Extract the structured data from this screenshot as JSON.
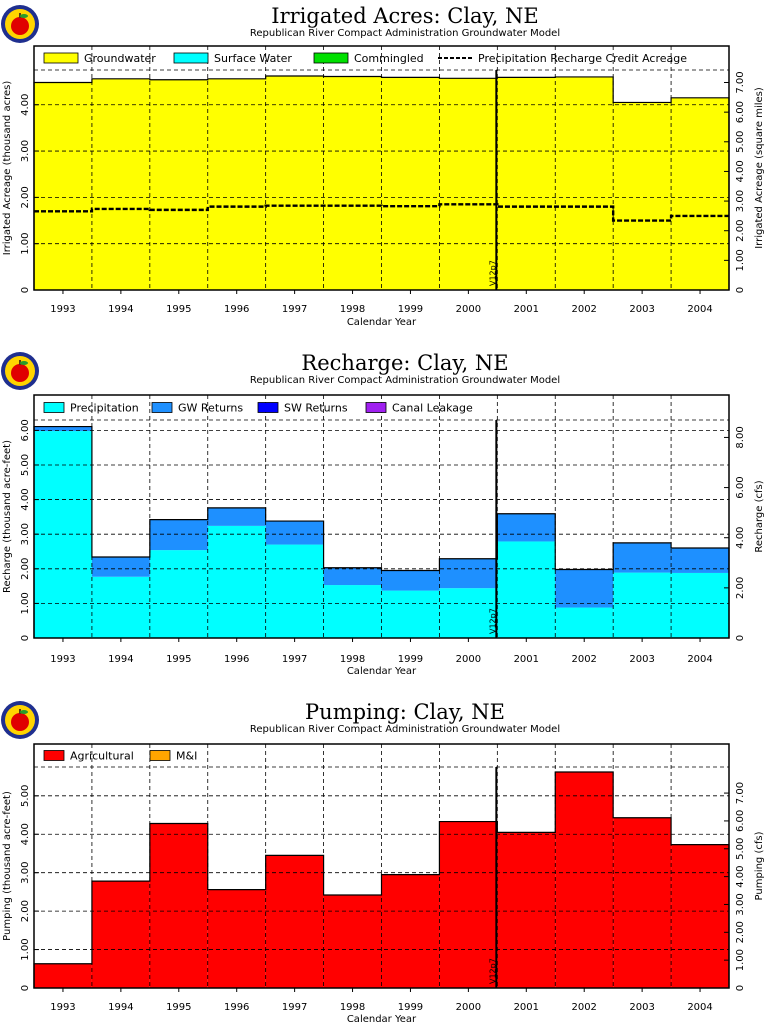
{
  "colors": {
    "groundwater": "#ffff00",
    "surface_water": "#00ffff",
    "commingled": "#00e000",
    "precipitation": "#00ffff",
    "gw_returns": "#1e90ff",
    "sw_returns": "#0000ff",
    "canal_leakage": "#a020f0",
    "agricultural": "#ff0000",
    "mi": "#ffa500",
    "logo_outer": "#1f2f8f",
    "logo_ring": "#ffd400",
    "logo_apple": "#e00000"
  },
  "icons": [
    "apple-logo-icon"
  ],
  "chart_data": [
    {
      "type": "bar",
      "title": "Irrigated Acres: Clay, NE",
      "subtitle": "Republican River Compact Administration Groundwater Model",
      "xlabel": "Calendar Year",
      "ylabel": "Irrigated Acreage (thousand acres)",
      "y2label": "Irrigated Acreage (square miles)",
      "categories": [
        "1993",
        "1994",
        "1995",
        "1996",
        "1997",
        "1998",
        "1999",
        "2000",
        "2001",
        "2002",
        "2003",
        "2004"
      ],
      "series": [
        {
          "name": "Groundwater",
          "values": [
            448,
            456,
            454,
            456,
            462,
            461,
            459,
            457,
            459,
            460,
            405,
            415
          ]
        },
        {
          "name": "Surface Water",
          "values": [
            0,
            0,
            0,
            0,
            0,
            0,
            0,
            0,
            0,
            0,
            0,
            0
          ]
        },
        {
          "name": "Commingled",
          "values": [
            0,
            0,
            0,
            0,
            0,
            0,
            0,
            0,
            0,
            0,
            0,
            0
          ]
        },
        {
          "name": "Precipitation Recharge Credit Acreage",
          "style": "dashed-line",
          "values": [
            170,
            175,
            173,
            180,
            182,
            182,
            181,
            185,
            180,
            180,
            150,
            160
          ]
        }
      ],
      "ylim": [
        0,
        475
      ],
      "yticks": [
        0,
        100,
        200,
        300,
        400
      ],
      "yticklabels": [
        "0",
        "1.00",
        "2.00",
        "3.00",
        "4.00"
      ],
      "y2ticks": [
        0,
        1.0,
        2.0,
        3.0,
        4.0,
        5.0,
        6.0,
        7.0
      ],
      "y2ticklabels": [
        "0",
        "1.00",
        "2.00",
        "3.00",
        "4.00",
        "5.00",
        "6.00",
        "7.00"
      ],
      "y2scale": 0.6453,
      "marker": {
        "label": "V12p7",
        "between": [
          "2000",
          "2001"
        ]
      },
      "legend": "top",
      "grid": true
    },
    {
      "type": "bar",
      "title": "Recharge: Clay, NE",
      "subtitle": "Republican River Compact Administration Groundwater Model",
      "xlabel": "Calendar Year",
      "ylabel": "Recharge (thousand acre-feet)",
      "y2label": "Recharge (cfs)",
      "categories": [
        "1993",
        "1994",
        "1995",
        "1996",
        "1997",
        "1998",
        "1999",
        "2000",
        "2001",
        "2002",
        "2003",
        "2004"
      ],
      "series": [
        {
          "name": "Precipitation",
          "values": [
            5.98,
            1.77,
            2.54,
            3.24,
            2.7,
            1.53,
            1.37,
            1.44,
            2.79,
            0.88,
            1.89,
            1.88
          ]
        },
        {
          "name": "GW Returns",
          "values": [
            0.13,
            0.57,
            0.88,
            0.52,
            0.68,
            0.5,
            0.58,
            0.85,
            0.8,
            1.1,
            0.86,
            0.72
          ]
        },
        {
          "name": "SW Returns",
          "values": [
            0,
            0,
            0,
            0,
            0,
            0,
            0,
            0,
            0,
            0,
            0,
            0
          ]
        },
        {
          "name": "Canal Leakage",
          "values": [
            0,
            0,
            0,
            0,
            0,
            0,
            0,
            0,
            0,
            0,
            0,
            0
          ]
        }
      ],
      "ylim": [
        0,
        6.3
      ],
      "yticks": [
        0,
        1,
        2,
        3,
        4,
        5,
        6
      ],
      "yticklabels": [
        "0",
        "1.00",
        "2.00",
        "3.00",
        "4.00",
        "5.00",
        "6.00"
      ],
      "y2ticks": [
        0,
        2,
        4,
        6,
        8
      ],
      "y2ticklabels": [
        "0",
        "2.00",
        "4.00",
        "6.00",
        "8.00"
      ],
      "y2scale": 0.7245,
      "marker": {
        "label": "V12p7",
        "between": [
          "2000",
          "2001"
        ]
      },
      "legend": "top",
      "grid": true
    },
    {
      "type": "bar",
      "title": "Pumping: Clay, NE",
      "subtitle": "Republican River Compact Administration Groundwater Model",
      "xlabel": "Calendar Year",
      "ylabel": "Pumping (thousand acre-feet)",
      "y2label": "Pumping (cfs)",
      "categories": [
        "1993",
        "1994",
        "1995",
        "1996",
        "1997",
        "1998",
        "1999",
        "2000",
        "2001",
        "2002",
        "2003",
        "2004"
      ],
      "series": [
        {
          "name": "Agricultural",
          "values": [
            0.63,
            2.78,
            4.28,
            2.56,
            3.45,
            2.42,
            2.95,
            4.33,
            4.05,
            5.62,
            4.43,
            3.73
          ]
        },
        {
          "name": "M&I",
          "values": [
            0,
            0,
            0,
            0,
            0,
            0,
            0,
            0,
            0,
            0,
            0,
            0
          ]
        }
      ],
      "ylim": [
        0,
        5.75
      ],
      "yticks": [
        0,
        1,
        2,
        3,
        4,
        5
      ],
      "yticklabels": [
        "0",
        "1.00",
        "2.00",
        "3.00",
        "4.00",
        "5.00"
      ],
      "y2ticks": [
        0,
        1,
        2,
        3,
        4,
        5,
        6,
        7
      ],
      "y2ticklabels": [
        "0",
        "1.00",
        "2.00",
        "3.00",
        "4.00",
        "5.00",
        "6.00",
        "7.00"
      ],
      "y2scale": 0.7245,
      "marker": {
        "label": "V12p7",
        "between": [
          "2000",
          "2001"
        ]
      },
      "legend": "top",
      "grid": true
    }
  ]
}
